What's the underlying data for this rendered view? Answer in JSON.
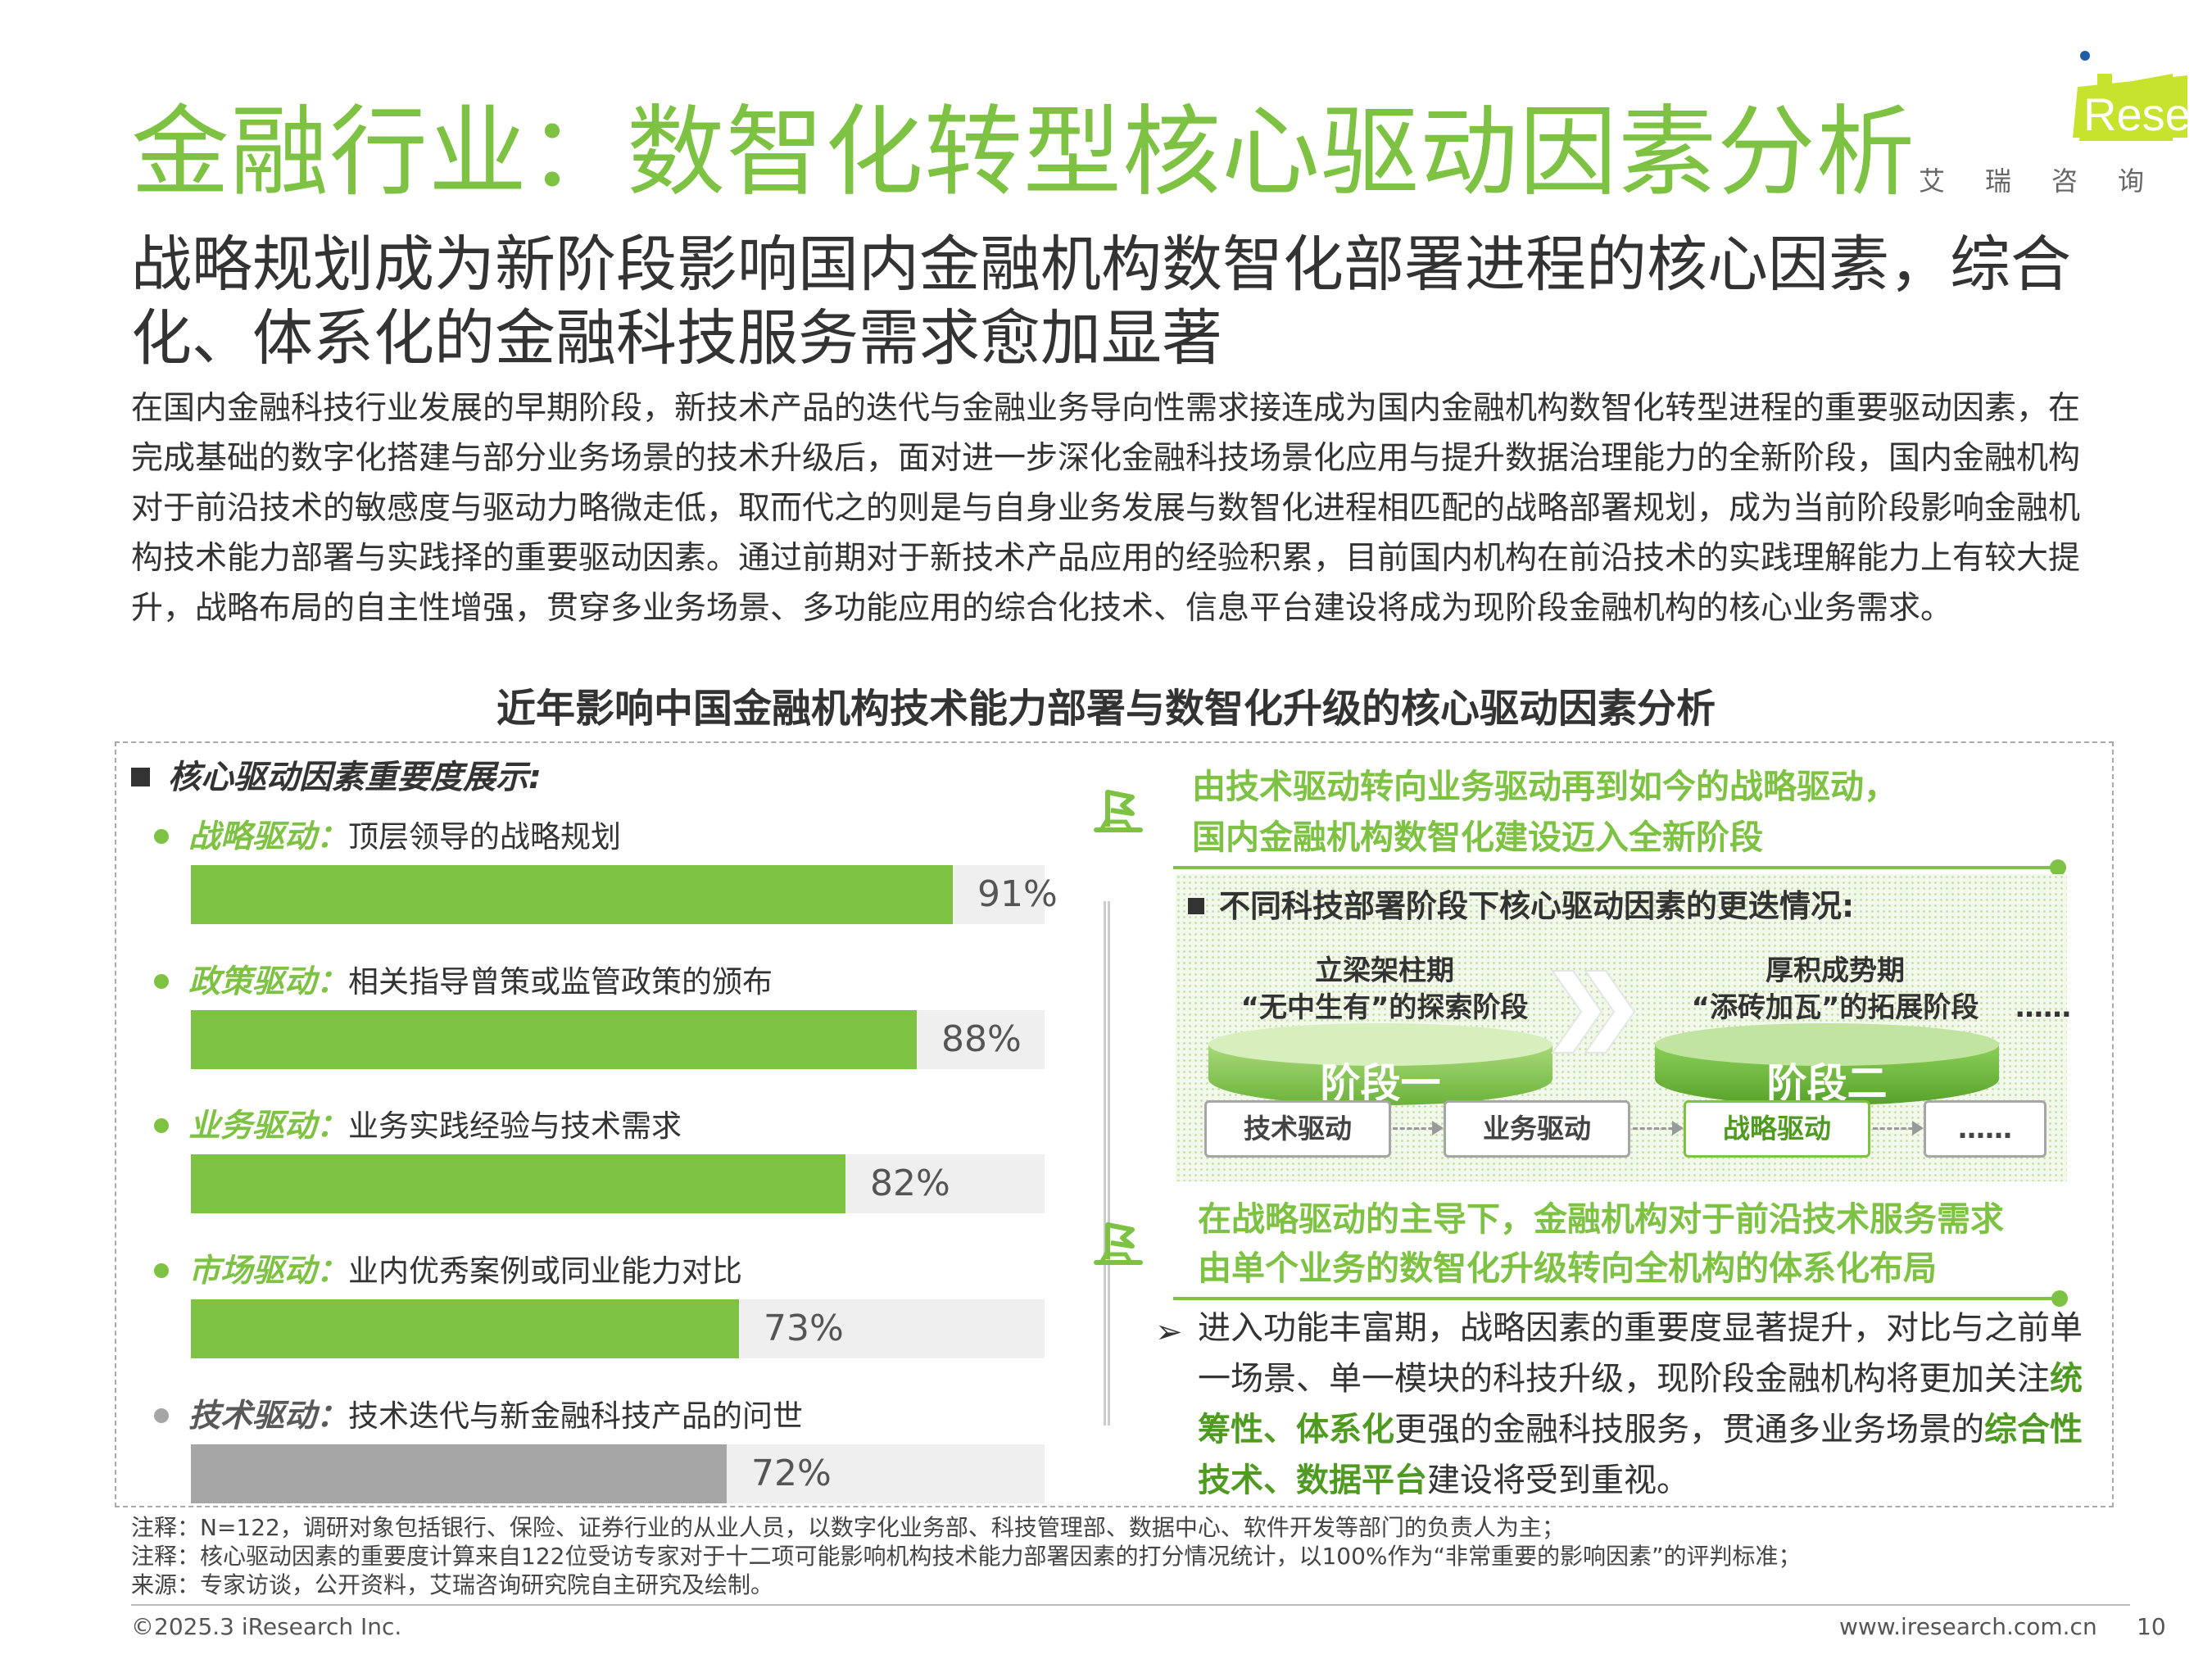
{
  "header": {
    "title": "金融行业：数智化转型核心驱动因素分析",
    "subtitle": "战略规划成为新阶段影响国内金融机构数智化部署进程的核心因素，综合化、体系化的金融科技服务需求愈加显著",
    "body": "在国内金融科技行业发展的早期阶段，新技术产品的迭代与金融业务导向性需求接连成为国内金融机构数智化转型进程的重要驱动因素，在完成基础的数字化搭建与部分业务场景的技术升级后，面对进一步深化金融科技场景化应用与提升数据治理能力的全新阶段，国内金融机构对于前沿技术的敏感度与驱动力略微走低，取而代之的则是与自身业务发展与数智化进程相匹配的战略部署规划，成为当前阶段影响金融机构技术能力部署与实践择的重要驱动因素。通过前期对于新技术产品应用的经验积累，目前国内机构在前沿技术的实践理解能力上有较大提升，战略布局的自主性增强，贯穿多业务场景、多功能应用的综合化技术、信息平台建设将成为现阶段金融机构的核心业务需求。"
  },
  "logo": {
    "text": "Research",
    "cn": "艾瑞咨询",
    "accent": "#c7e32e",
    "dot": "#1e5ea8"
  },
  "chart_data": {
    "type": "bar",
    "title": "近年影响中国金融机构技术能力部署与数智化升级的核心驱动因素分析",
    "heading": "核心驱动因素重要度展示:",
    "categories": [
      "战略驱动",
      "政策驱动",
      "业务驱动",
      "市场驱动",
      "技术驱动"
    ],
    "descriptions": [
      "顶层领导的战略规划",
      "相关指导曾策或监管政策的颁布",
      "业务实践经验与技术需求",
      "业内优秀案例或同业能力对比",
      "技术迭代与新金融科技产品的问世"
    ],
    "values": [
      91,
      88,
      82,
      73,
      72
    ],
    "value_labels": [
      "91%",
      "88%",
      "82%",
      "73%",
      "72%"
    ],
    "ylim": [
      0,
      100
    ],
    "colors": [
      "#7dc242",
      "#7dc242",
      "#7dc242",
      "#7dc242",
      "#a6a6a6"
    ],
    "label_colors": [
      "#7dc242",
      "#7dc242",
      "#7dc242",
      "#7dc242",
      "#595959"
    ]
  },
  "right": {
    "headline1": [
      "由技术驱动转向业务驱动再到如今的战略驱动，",
      "国内金融机构数智化建设迈入全新阶段"
    ],
    "stages_heading": "不同科技部署阶段下核心驱动因素的更迭情况:",
    "stage1": {
      "caption1": "立梁架柱期",
      "caption2": "“无中生有”的探索阶段",
      "name": "阶段一"
    },
    "stage2": {
      "caption1": "厚积成势期",
      "caption2": "“添砖加瓦”的拓展阶段",
      "name": "阶段二"
    },
    "ellipsis": "……",
    "chips": [
      "技术驱动",
      "业务驱动",
      "战略驱动",
      "……"
    ],
    "headline2": [
      "在战略驱动的主导下，金融机构对于前沿技术服务需求",
      "由单个业务的数智化升级转向全机构的体系化布局"
    ],
    "bullet_symbol": "➢",
    "bullet_parts": [
      {
        "text": "进入功能丰富期，战略因素的重要度显著提升，对比与之前单一场景、单一模块的科技升级，现阶段金融机构将更加关注",
        "bold": false
      },
      {
        "text": "统筹性、体系化",
        "bold": true
      },
      {
        "text": "更强的金融科技服务，贯通多业务场景的",
        "bold": false
      },
      {
        "text": "综合性技术、数据平台",
        "bold": true
      },
      {
        "text": "建设将受到重视。",
        "bold": false
      }
    ]
  },
  "notes": [
    "注释：N=122，调研对象包括银行、保险、证券行业的从业人员，以数字化业务部、科技管理部、数据中心、软件开发等部门的负责人为主；",
    "注释：核心驱动因素的重要度计算来自122位受访专家对于十二项可能影响机构技术能力部署因素的打分情况统计，以100%作为“非常重要的影响因素”的评判标准；",
    "来源：专家访谈，公开资料，艾瑞咨询研究院自主研究及绘制。"
  ],
  "footer": {
    "copyright": "©2025.3 iResearch Inc.",
    "url": "www.iresearch.com.cn",
    "page": "10"
  }
}
